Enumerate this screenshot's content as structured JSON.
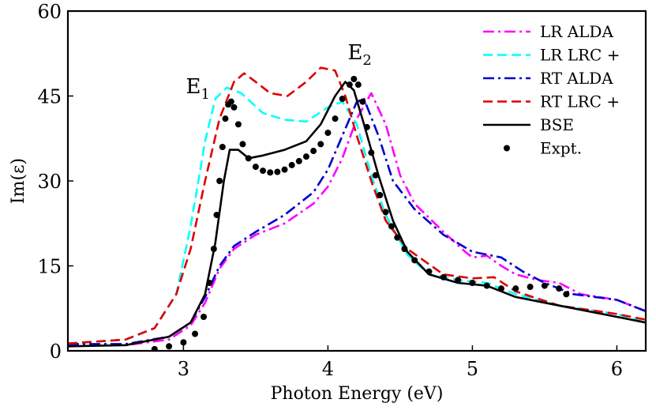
{
  "chart_data": {
    "type": "line",
    "xlabel": "Photon Energy (eV)",
    "ylabel": "Im(ε)",
    "xlim": [
      2.2,
      6.2
    ],
    "ylim": [
      0,
      60
    ],
    "xticks": [
      3,
      4,
      5,
      6
    ],
    "yticks": [
      0,
      15,
      30,
      45,
      60
    ],
    "grid": false,
    "legend_position": "top-right",
    "annotations": [
      {
        "label": "E",
        "sub": "1",
        "x": 3.1,
        "y": 45.5
      },
      {
        "label": "E",
        "sub": "2",
        "x": 4.22,
        "y": 51.5
      }
    ],
    "series": [
      {
        "name": "LR ALDA",
        "color": "#ff00ff",
        "style": "dashdot",
        "points": [
          [
            2.2,
            0.9
          ],
          [
            2.6,
            1.0
          ],
          [
            2.9,
            2.0
          ],
          [
            3.05,
            4.5
          ],
          [
            3.15,
            8.5
          ],
          [
            3.25,
            14.5
          ],
          [
            3.35,
            18.0
          ],
          [
            3.5,
            20.5
          ],
          [
            3.7,
            22.5
          ],
          [
            3.9,
            26.0
          ],
          [
            4.0,
            29.0
          ],
          [
            4.1,
            34.0
          ],
          [
            4.2,
            41.0
          ],
          [
            4.3,
            45.5
          ],
          [
            4.4,
            40.0
          ],
          [
            4.5,
            31.0
          ],
          [
            4.6,
            26.0
          ],
          [
            4.8,
            21.0
          ],
          [
            4.95,
            17.5
          ],
          [
            5.0,
            16.5
          ],
          [
            5.1,
            16.8
          ],
          [
            5.2,
            15.0
          ],
          [
            5.3,
            13.5
          ],
          [
            5.45,
            12.5
          ],
          [
            5.6,
            12.0
          ],
          [
            5.75,
            10.0
          ],
          [
            6.0,
            9.0
          ],
          [
            6.2,
            7.0
          ]
        ]
      },
      {
        "name": "LR LRC +",
        "color": "#00ffff",
        "style": "dashed",
        "points": [
          [
            2.2,
            1.3
          ],
          [
            2.6,
            2.0
          ],
          [
            2.8,
            4.0
          ],
          [
            2.95,
            10.0
          ],
          [
            3.05,
            22.0
          ],
          [
            3.15,
            37.0
          ],
          [
            3.22,
            44.5
          ],
          [
            3.3,
            46.5
          ],
          [
            3.4,
            45.5
          ],
          [
            3.55,
            42.0
          ],
          [
            3.7,
            40.8
          ],
          [
            3.85,
            40.5
          ],
          [
            4.0,
            43.0
          ],
          [
            4.1,
            44.0
          ],
          [
            4.2,
            40.0
          ],
          [
            4.3,
            31.0
          ],
          [
            4.4,
            24.0
          ],
          [
            4.55,
            17.0
          ],
          [
            4.7,
            13.5
          ],
          [
            4.9,
            12.5
          ],
          [
            5.1,
            12.0
          ],
          [
            5.3,
            10.0
          ],
          [
            5.6,
            8.0
          ],
          [
            6.0,
            6.5
          ],
          [
            6.2,
            5.0
          ]
        ]
      },
      {
        "name": "RT ALDA",
        "color": "#0000cc",
        "style": "dashdot",
        "points": [
          [
            2.2,
            1.2
          ],
          [
            2.6,
            1.2
          ],
          [
            2.9,
            2.5
          ],
          [
            3.05,
            5.0
          ],
          [
            3.15,
            9.5
          ],
          [
            3.25,
            15.0
          ],
          [
            3.35,
            18.5
          ],
          [
            3.5,
            21.0
          ],
          [
            3.7,
            24.0
          ],
          [
            3.9,
            28.0
          ],
          [
            4.0,
            32.0
          ],
          [
            4.1,
            38.0
          ],
          [
            4.2,
            44.0
          ],
          [
            4.25,
            44.5
          ],
          [
            4.35,
            38.0
          ],
          [
            4.45,
            30.0
          ],
          [
            4.6,
            25.0
          ],
          [
            4.8,
            20.5
          ],
          [
            5.0,
            17.5
          ],
          [
            5.1,
            17.0
          ],
          [
            5.2,
            16.5
          ],
          [
            5.35,
            14.0
          ],
          [
            5.5,
            12.0
          ],
          [
            5.7,
            10.0
          ],
          [
            6.0,
            9.0
          ],
          [
            6.2,
            7.0
          ]
        ]
      },
      {
        "name": "RT LRC +",
        "color": "#dd0000",
        "style": "dashed",
        "points": [
          [
            2.2,
            1.3
          ],
          [
            2.6,
            2.0
          ],
          [
            2.8,
            4.0
          ],
          [
            2.95,
            10.0
          ],
          [
            3.05,
            18.0
          ],
          [
            3.15,
            30.0
          ],
          [
            3.25,
            41.0
          ],
          [
            3.35,
            47.5
          ],
          [
            3.42,
            49.0
          ],
          [
            3.5,
            47.5
          ],
          [
            3.6,
            45.5
          ],
          [
            3.72,
            45.0
          ],
          [
            3.85,
            47.5
          ],
          [
            3.95,
            50.0
          ],
          [
            4.05,
            49.5
          ],
          [
            4.12,
            45.0
          ],
          [
            4.2,
            38.0
          ],
          [
            4.3,
            30.0
          ],
          [
            4.4,
            23.0
          ],
          [
            4.55,
            18.0
          ],
          [
            4.8,
            13.5
          ],
          [
            5.0,
            12.8
          ],
          [
            5.15,
            13.0
          ],
          [
            5.3,
            10.5
          ],
          [
            5.6,
            8.0
          ],
          [
            6.0,
            6.5
          ],
          [
            6.2,
            5.5
          ]
        ]
      },
      {
        "name": "BSE",
        "color": "#000000",
        "style": "solid",
        "points": [
          [
            2.2,
            0.8
          ],
          [
            2.6,
            1.0
          ],
          [
            2.9,
            2.5
          ],
          [
            3.05,
            5.0
          ],
          [
            3.15,
            10.0
          ],
          [
            3.22,
            19.0
          ],
          [
            3.28,
            30.0
          ],
          [
            3.32,
            35.5
          ],
          [
            3.38,
            35.5
          ],
          [
            3.45,
            34.0
          ],
          [
            3.55,
            34.5
          ],
          [
            3.7,
            35.5
          ],
          [
            3.85,
            37.0
          ],
          [
            3.95,
            40.0
          ],
          [
            4.05,
            45.0
          ],
          [
            4.12,
            47.5
          ],
          [
            4.18,
            46.0
          ],
          [
            4.25,
            40.0
          ],
          [
            4.35,
            31.0
          ],
          [
            4.45,
            23.0
          ],
          [
            4.55,
            17.5
          ],
          [
            4.7,
            13.5
          ],
          [
            4.9,
            12.0
          ],
          [
            5.1,
            11.5
          ],
          [
            5.3,
            9.5
          ],
          [
            5.6,
            8.0
          ],
          [
            6.0,
            6.0
          ],
          [
            6.2,
            5.0
          ]
        ]
      },
      {
        "name": "Expt.",
        "color": "#000000",
        "style": "markers",
        "points": [
          [
            2.8,
            0.3
          ],
          [
            2.9,
            0.8
          ],
          [
            3.0,
            1.5
          ],
          [
            3.08,
            3.0
          ],
          [
            3.14,
            6.0
          ],
          [
            3.18,
            12.0
          ],
          [
            3.21,
            18.0
          ],
          [
            3.23,
            24.0
          ],
          [
            3.25,
            30.0
          ],
          [
            3.27,
            36.0
          ],
          [
            3.29,
            41.0
          ],
          [
            3.31,
            43.5
          ],
          [
            3.33,
            44.0
          ],
          [
            3.35,
            43.0
          ],
          [
            3.38,
            40.0
          ],
          [
            3.41,
            36.5
          ],
          [
            3.45,
            34.0
          ],
          [
            3.5,
            32.5
          ],
          [
            3.55,
            31.8
          ],
          [
            3.6,
            31.5
          ],
          [
            3.65,
            31.6
          ],
          [
            3.7,
            32.0
          ],
          [
            3.75,
            32.8
          ],
          [
            3.8,
            33.5
          ],
          [
            3.85,
            34.3
          ],
          [
            3.9,
            35.3
          ],
          [
            3.95,
            36.5
          ],
          [
            4.0,
            38.5
          ],
          [
            4.05,
            41.0
          ],
          [
            4.1,
            44.5
          ],
          [
            4.15,
            47.0
          ],
          [
            4.18,
            48.0
          ],
          [
            4.21,
            47.0
          ],
          [
            4.24,
            44.0
          ],
          [
            4.27,
            39.5
          ],
          [
            4.3,
            35.0
          ],
          [
            4.33,
            31.0
          ],
          [
            4.36,
            27.5
          ],
          [
            4.4,
            24.5
          ],
          [
            4.44,
            22.0
          ],
          [
            4.48,
            20.0
          ],
          [
            4.53,
            18.0
          ],
          [
            4.6,
            16.0
          ],
          [
            4.7,
            14.0
          ],
          [
            4.8,
            13.0
          ],
          [
            4.9,
            12.5
          ],
          [
            5.0,
            12.0
          ],
          [
            5.1,
            11.5
          ],
          [
            5.2,
            11.0
          ],
          [
            5.3,
            11.0
          ],
          [
            5.4,
            11.3
          ],
          [
            5.5,
            11.5
          ],
          [
            5.6,
            11.0
          ],
          [
            5.65,
            10.0
          ]
        ]
      }
    ]
  }
}
